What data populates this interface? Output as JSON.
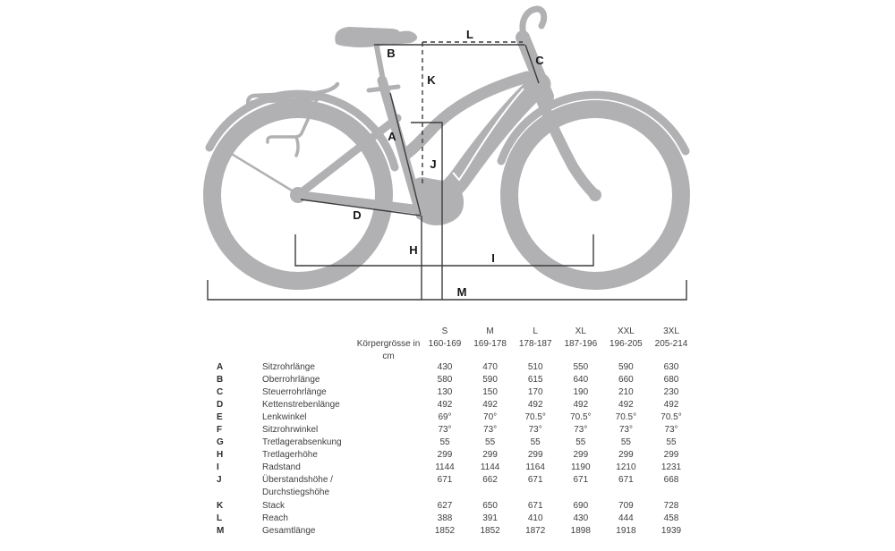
{
  "diagram": {
    "labels": {
      "A": "A",
      "B": "B",
      "C": "C",
      "D": "D",
      "H": "H",
      "I": "I",
      "J": "J",
      "K": "K",
      "L": "L",
      "M": "M"
    }
  },
  "table": {
    "header": {
      "body_height_label": "Körpergrösse in cm",
      "sizes": [
        "S",
        "M",
        "L",
        "XL",
        "XXL",
        "3XL"
      ],
      "ranges": [
        "160-169",
        "169-178",
        "178-187",
        "187-196",
        "196-205",
        "205-214"
      ]
    },
    "rows": [
      {
        "key": "A",
        "label": "Sitzrohrlänge",
        "values": [
          "430",
          "470",
          "510",
          "550",
          "590",
          "630"
        ]
      },
      {
        "key": "B",
        "label": "Oberrohrlänge",
        "values": [
          "580",
          "590",
          "615",
          "640",
          "660",
          "680"
        ]
      },
      {
        "key": "C",
        "label": "Steuerrohrlänge",
        "values": [
          "130",
          "150",
          "170",
          "190",
          "210",
          "230"
        ]
      },
      {
        "key": "D",
        "label": "Kettenstrebenlänge",
        "values": [
          "492",
          "492",
          "492",
          "492",
          "492",
          "492"
        ]
      },
      {
        "key": "E",
        "label": "Lenkwinkel",
        "values": [
          "69°",
          "70°",
          "70.5°",
          "70.5°",
          "70.5°",
          "70.5°"
        ]
      },
      {
        "key": "F",
        "label": "Sitzrohrwinkel",
        "values": [
          "73°",
          "73°",
          "73°",
          "73°",
          "73°",
          "73°"
        ]
      },
      {
        "key": "G",
        "label": "Tretlagerabsenkung",
        "values": [
          "55",
          "55",
          "55",
          "55",
          "55",
          "55"
        ]
      },
      {
        "key": "H",
        "label": "Tretlagerhöhe",
        "values": [
          "299",
          "299",
          "299",
          "299",
          "299",
          "299"
        ]
      },
      {
        "key": "I",
        "label": "Radstand",
        "values": [
          "1144",
          "1144",
          "1164",
          "1190",
          "1210",
          "1231"
        ]
      },
      {
        "key": "J",
        "label": "Überstandshöhe / Durchstiegshöhe",
        "values": [
          "671",
          "662",
          "671",
          "671",
          "671",
          "668"
        ]
      },
      {
        "key": "K",
        "label": "Stack",
        "values": [
          "627",
          "650",
          "671",
          "690",
          "709",
          "728"
        ]
      },
      {
        "key": "L",
        "label": "Reach",
        "values": [
          "388",
          "391",
          "410",
          "430",
          "444",
          "458"
        ]
      },
      {
        "key": "M",
        "label": "Gesamtlänge",
        "values": [
          "1852",
          "1852",
          "1872",
          "1898",
          "1918",
          "1939"
        ]
      }
    ]
  }
}
